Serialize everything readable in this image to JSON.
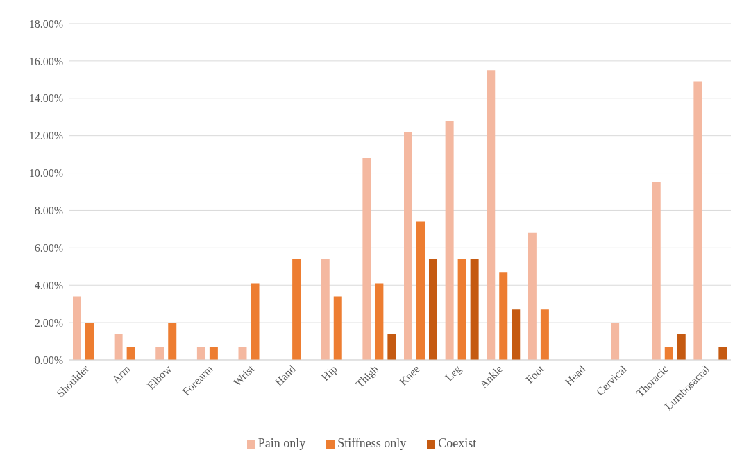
{
  "chart_data": {
    "type": "bar",
    "categories": [
      "Shoulder",
      "Arm",
      "Elbow",
      "Forearm",
      "Wrist",
      "Hand",
      "Hip",
      "Thigh",
      "Knee",
      "Leg",
      "Ankle",
      "Foot",
      "Head",
      "Cervical",
      "Thoracic",
      "Lumbosacral"
    ],
    "series": [
      {
        "name": "Pain only",
        "color": "#f4b8a0",
        "values": [
          3.4,
          1.4,
          0.7,
          0.7,
          0.7,
          0,
          5.4,
          10.8,
          12.2,
          12.8,
          15.5,
          6.8,
          0,
          2.0,
          9.5,
          14.9
        ]
      },
      {
        "name": "Stiffness only",
        "color": "#ed7d31",
        "values": [
          2.0,
          0.7,
          2.0,
          0.7,
          4.1,
          5.4,
          3.4,
          4.1,
          7.4,
          5.4,
          4.7,
          2.7,
          0,
          0,
          0.7,
          0
        ]
      },
      {
        "name": "Coexist",
        "color": "#c55a11",
        "values": [
          0,
          0,
          0,
          0,
          0,
          0,
          0,
          1.4,
          5.4,
          5.4,
          2.7,
          0,
          0,
          0,
          1.4,
          0.7
        ]
      }
    ],
    "ylim": [
      0,
      18
    ],
    "yticks": [
      {
        "value": 0,
        "label": "0.00%"
      },
      {
        "value": 2,
        "label": "2.00%"
      },
      {
        "value": 4,
        "label": "4.00%"
      },
      {
        "value": 6,
        "label": "6.00%"
      },
      {
        "value": 8,
        "label": "8.00%"
      },
      {
        "value": 10,
        "label": "10.00%"
      },
      {
        "value": 12,
        "label": "12.00%"
      },
      {
        "value": 14,
        "label": "14.00%"
      },
      {
        "value": 16,
        "label": "16.00%"
      },
      {
        "value": 18,
        "label": "18.00%"
      }
    ],
    "grid": "y",
    "legend": "bottom"
  }
}
